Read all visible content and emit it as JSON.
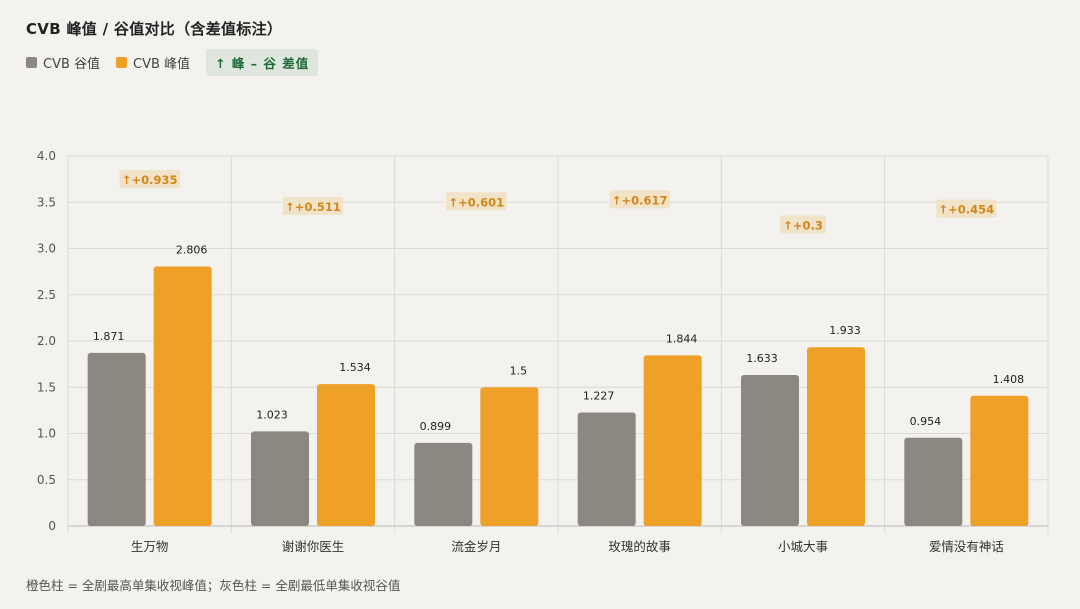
{
  "title": "CVB 峰值 / 谷值对比（含差值标注）",
  "legend": {
    "low_label": "CVB 谷值",
    "high_label": "CVB 峰值",
    "diff_label": "↑ 峰 – 谷 差值"
  },
  "footnote": "橙色柱 = 全剧最高单集收视峰值；灰色柱 = 全剧最低单集收视谷值",
  "colors": {
    "low": "#8a8880",
    "high": "#eea029",
    "diff_bg": "#f1e3c8",
    "diff_text": "#d4861a",
    "grid": "#dcdad5",
    "axis": "#bdbab4"
  },
  "chart_data": {
    "type": "bar",
    "categories": [
      "生万物",
      "谢谢你医生",
      "流金岁月",
      "玫瑰的故事",
      "小城大事",
      "爱情没有神话"
    ],
    "series": [
      {
        "name": "CVB 谷值",
        "values": [
          1.871,
          1.023,
          0.899,
          1.227,
          1.633,
          0.954
        ]
      },
      {
        "name": "CVB 峰值",
        "values": [
          2.806,
          1.534,
          1.5,
          1.844,
          1.933,
          1.408
        ]
      }
    ],
    "diff_labels": [
      "↑+0.935",
      "↑+0.511",
      "↑+0.601",
      "↑+0.617",
      "↑+0.3",
      "↑+0.454"
    ],
    "diff_y": [
      3.74,
      3.45,
      3.5,
      3.52,
      3.25,
      3.42
    ],
    "ylim": [
      0,
      4.0
    ],
    "yticks": [
      "0",
      "0.5",
      "1.0",
      "1.5",
      "2.0",
      "2.5",
      "3.0",
      "3.5",
      "4.0"
    ],
    "grid": true,
    "legend_position": "top-left"
  }
}
